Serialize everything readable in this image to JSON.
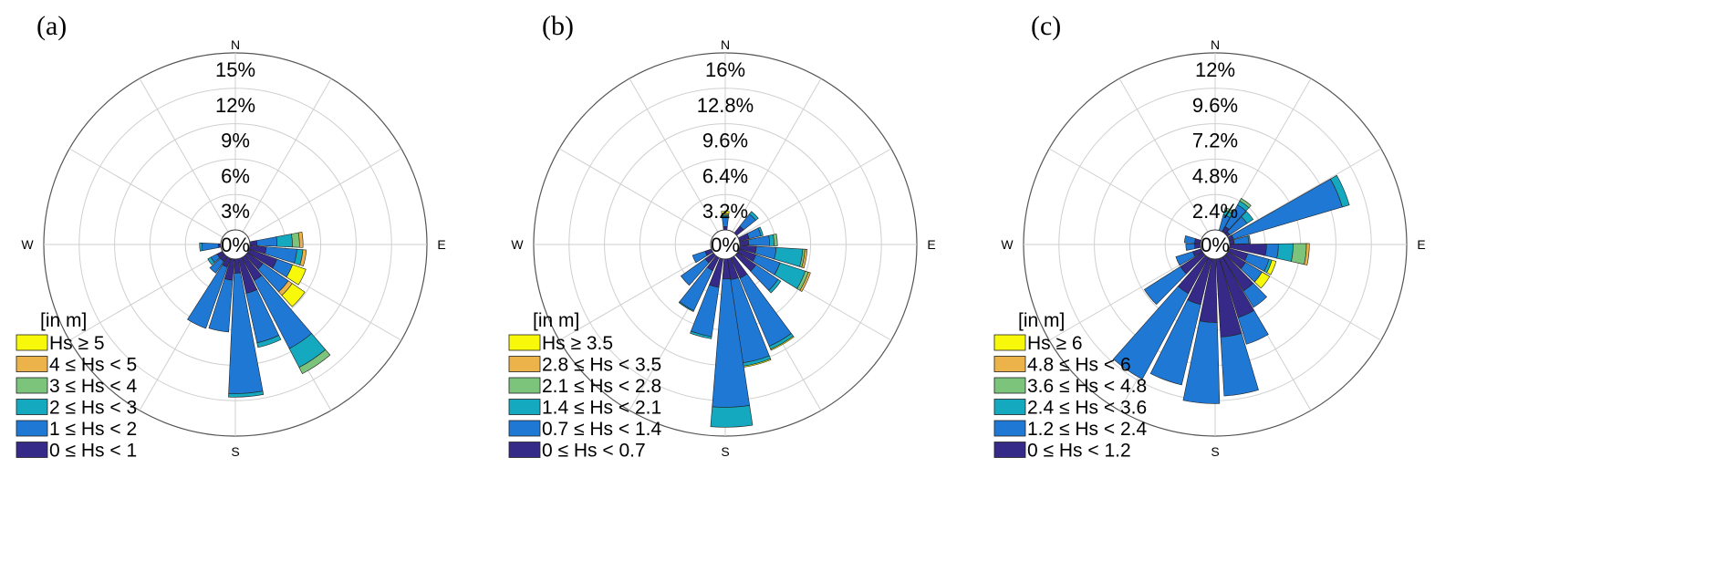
{
  "colors": {
    "bin0": "#352a87",
    "bin1": "#1f78d4",
    "bin2": "#14a9be",
    "bin3": "#7cc47c",
    "bin4": "#ebb349",
    "bin5": "#f8f80a",
    "grid": "#cfcfcf",
    "frame": "#555555"
  },
  "chart_data": [
    {
      "type": "wind-rose",
      "panel_label": "(a)",
      "directions": [
        "N",
        "E",
        "S",
        "W"
      ],
      "rings": [
        "3%",
        "6%",
        "9%",
        "12%",
        "15%"
      ],
      "rmax": 15,
      "center_label": "0%",
      "legend_title": "[in m]",
      "bins": [
        "Hs ≥ 5",
        "4 ≤ Hs < 5",
        "3 ≤ Hs < 4",
        "2 ≤ Hs < 3",
        "1 ≤ Hs < 2",
        "0 ≤ Hs < 1"
      ],
      "sectors": [
        {
          "dir": 86,
          "v": [
            0.6,
            1.7,
            1.3,
            0.6,
            0.3,
            0
          ]
        },
        {
          "dir": 101,
          "v": [
            1.4,
            2.6,
            0.5,
            0,
            0.3,
            0
          ]
        },
        {
          "dir": 116,
          "v": [
            2.5,
            1.4,
            0,
            0,
            0,
            1.2
          ]
        },
        {
          "dir": 131,
          "v": [
            1.6,
            2.6,
            0,
            0,
            0.4,
            1.3
          ]
        },
        {
          "dir": 146,
          "v": [
            2.2,
            6.5,
            1.8,
            0.6,
            0,
            0
          ]
        },
        {
          "dir": 161,
          "v": [
            3.0,
            4.3,
            0.4,
            0,
            0,
            0
          ]
        },
        {
          "dir": 176,
          "v": [
            1.2,
            10.2,
            0.3,
            0,
            0,
            0
          ]
        },
        {
          "dir": 191,
          "v": [
            1.8,
            4.4,
            0,
            0,
            0,
            0
          ]
        },
        {
          "dir": 206,
          "v": [
            0.8,
            5.5,
            0,
            0,
            0,
            0
          ]
        },
        {
          "dir": 221,
          "v": [
            0.5,
            1.2,
            0,
            0,
            0,
            0
          ]
        },
        {
          "dir": 236,
          "v": [
            0.5,
            0.6,
            0.3,
            0,
            0,
            0
          ]
        },
        {
          "dir": 266,
          "v": [
            0.2,
            1.4,
            0.2,
            0,
            0,
            0
          ]
        }
      ]
    },
    {
      "type": "wind-rose",
      "panel_label": "(b)",
      "directions": [
        "N",
        "E",
        "S",
        "W"
      ],
      "rings": [
        "3.2%",
        "6.4%",
        "9.6%",
        "12.8%",
        "16%"
      ],
      "rmax": 16,
      "center_label": "0%",
      "legend_title": "[in m]",
      "bins": [
        "Hs ≥ 3.5",
        "2.8 ≤ Hs < 3.5",
        "2.1 ≤ Hs < 2.8",
        "1.4 ≤ Hs < 2.1",
        "0.7 ≤ Hs < 1.4",
        "0 ≤ Hs < 0.7"
      ],
      "sectors": [
        {
          "dir": 0,
          "v": [
            0.3,
            0.8,
            0.2,
            0.1,
            0.1,
            0.2
          ]
        },
        {
          "dir": 45,
          "v": [
            0.8,
            1.4,
            0.3,
            0,
            0,
            0
          ]
        },
        {
          "dir": 70,
          "v": [
            0.9,
            1.1,
            0.2,
            0,
            0,
            0
          ]
        },
        {
          "dir": 85,
          "v": [
            0.8,
            1.9,
            0.4,
            0.3,
            0,
            0
          ]
        },
        {
          "dir": 100,
          "v": [
            1.5,
            1.8,
            2.4,
            0.2,
            0.2,
            0
          ]
        },
        {
          "dir": 115,
          "v": [
            1.6,
            2.3,
            2.4,
            0.3,
            0.2,
            0
          ]
        },
        {
          "dir": 130,
          "v": [
            2.0,
            2.4,
            0.3,
            0,
            0,
            0
          ]
        },
        {
          "dir": 150,
          "v": [
            2.0,
            6.7,
            0.3,
            0,
            0,
            0.1
          ]
        },
        {
          "dir": 165,
          "v": [
            1.9,
            7.6,
            0.3,
            0,
            0,
            0.1
          ]
        },
        {
          "dir": 178,
          "v": [
            1.8,
            11.6,
            1.8,
            0,
            0,
            0
          ]
        },
        {
          "dir": 195,
          "v": [
            2.6,
            4.5,
            0.2,
            0,
            0,
            0
          ]
        },
        {
          "dir": 212,
          "v": [
            1.3,
            4.0,
            0.1,
            0,
            0,
            0
          ]
        },
        {
          "dir": 228,
          "v": [
            0.9,
            2.7,
            0,
            0,
            0,
            0
          ]
        },
        {
          "dir": 245,
          "v": [
            0.6,
            1.2,
            0,
            0,
            0,
            0
          ]
        }
      ]
    },
    {
      "type": "wind-rose",
      "panel_label": "(c)",
      "directions": [
        "N",
        "E",
        "S",
        "W"
      ],
      "rings": [
        "2.4%",
        "4.8%",
        "7.2%",
        "9.6%",
        "12%"
      ],
      "rmax": 12,
      "center_label": "0%",
      "legend_title": "[in m]",
      "bins": [
        "Hs ≥ 6",
        "4.8 ≤ Hs < 6",
        "3.6 ≤ Hs < 4.8",
        "2.4 ≤ Hs < 3.6",
        "1.2 ≤ Hs < 2.4",
        "0 ≤ Hs < 1.2"
      ],
      "sectors": [
        {
          "dir": 22,
          "v": [
            0,
            1.1,
            0.3,
            0.2,
            0,
            0
          ]
        },
        {
          "dir": 36,
          "v": [
            0.4,
            1.7,
            0.3,
            0.2,
            0,
            0
          ]
        },
        {
          "dir": 50,
          "v": [
            0.2,
            1.4,
            0.5,
            0,
            0,
            0
          ]
        },
        {
          "dir": 67,
          "v": [
            0.3,
            7.7,
            0.5,
            0,
            0,
            0
          ]
        },
        {
          "dir": 82,
          "v": [
            0.3,
            1.0,
            0.1,
            0,
            0,
            0
          ]
        },
        {
          "dir": 96,
          "v": [
            2.5,
            0.8,
            1.0,
            0.9,
            0.2,
            0
          ]
        },
        {
          "dir": 112,
          "v": [
            1.3,
            1.5,
            0.2,
            0,
            0,
            0.3
          ]
        },
        {
          "dir": 127,
          "v": [
            1.4,
            1.3,
            0,
            0,
            0,
            0.6
          ]
        },
        {
          "dir": 142,
          "v": [
            2.7,
            1.3,
            0,
            0,
            0,
            0
          ]
        },
        {
          "dir": 156,
          "v": [
            4.2,
            1.9,
            0,
            0,
            0,
            0
          ]
        },
        {
          "dir": 170,
          "v": [
            5.3,
            4.0,
            0,
            0,
            0,
            0
          ]
        },
        {
          "dir": 185,
          "v": [
            4.3,
            5.5,
            0,
            0,
            0,
            0
          ]
        },
        {
          "dir": 200,
          "v": [
            3.2,
            5.6,
            0,
            0,
            0,
            0
          ]
        },
        {
          "dir": 215,
          "v": [
            2.8,
            6.6,
            0,
            0,
            0,
            0
          ]
        },
        {
          "dir": 231,
          "v": [
            1.8,
            2.9,
            0,
            0,
            0,
            0
          ]
        },
        {
          "dir": 246,
          "v": [
            0.6,
            1.2,
            0,
            0,
            0,
            0
          ]
        },
        {
          "dir": 265,
          "v": [
            0.4,
            0.6,
            0,
            0,
            0,
            0
          ]
        },
        {
          "dir": 280,
          "v": [
            0.4,
            0.7,
            0,
            0,
            0,
            0
          ]
        }
      ]
    }
  ]
}
